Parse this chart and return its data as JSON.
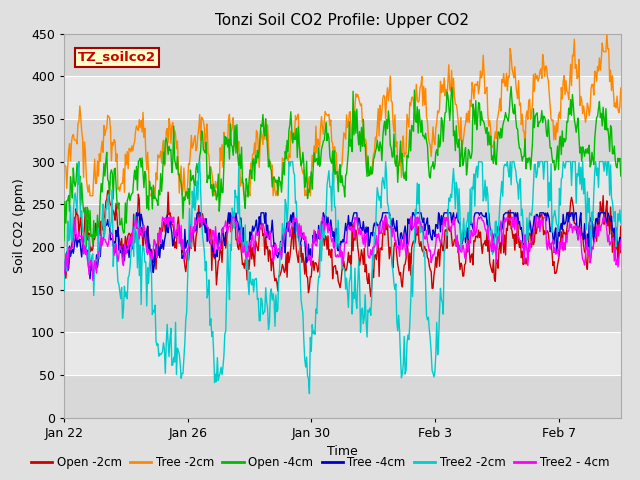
{
  "title": "Tonzi Soil CO2 Profile: Upper CO2",
  "xlabel": "Time",
  "ylabel": "Soil CO2 (ppm)",
  "ylim": [
    0,
    450
  ],
  "yticks": [
    0,
    50,
    100,
    150,
    200,
    250,
    300,
    350,
    400,
    450
  ],
  "label_box_text": "TZ_soilco2",
  "label_box_color": "#ffffcc",
  "label_box_edge": "#aa0000",
  "label_box_text_color": "#cc0000",
  "series": [
    {
      "name": "Open -2cm",
      "color": "#cc0000"
    },
    {
      "name": "Tree -2cm",
      "color": "#ff8800"
    },
    {
      "name": "Open -4cm",
      "color": "#00bb00"
    },
    {
      "name": "Tree -4cm",
      "color": "#0000cc"
    },
    {
      "name": "Tree2 -2cm",
      "color": "#00cccc"
    },
    {
      "name": "Tree2 - 4cm",
      "color": "#ff00ff"
    }
  ],
  "x_tick_labels": [
    "Jan 22",
    "Jan 26",
    "Jan 30",
    "Feb 3",
    "Feb 7"
  ],
  "x_tick_positions": [
    0,
    4,
    8,
    12,
    16
  ],
  "title_fontsize": 11,
  "axis_label_fontsize": 9,
  "tick_fontsize": 9,
  "legend_fontsize": 8.5,
  "fig_bg": "#e0e0e0",
  "plot_bg": "#e8e8e8",
  "band_light": "#e8e8e8",
  "band_dark": "#d8d8d8",
  "grid_color": "#ffffff"
}
